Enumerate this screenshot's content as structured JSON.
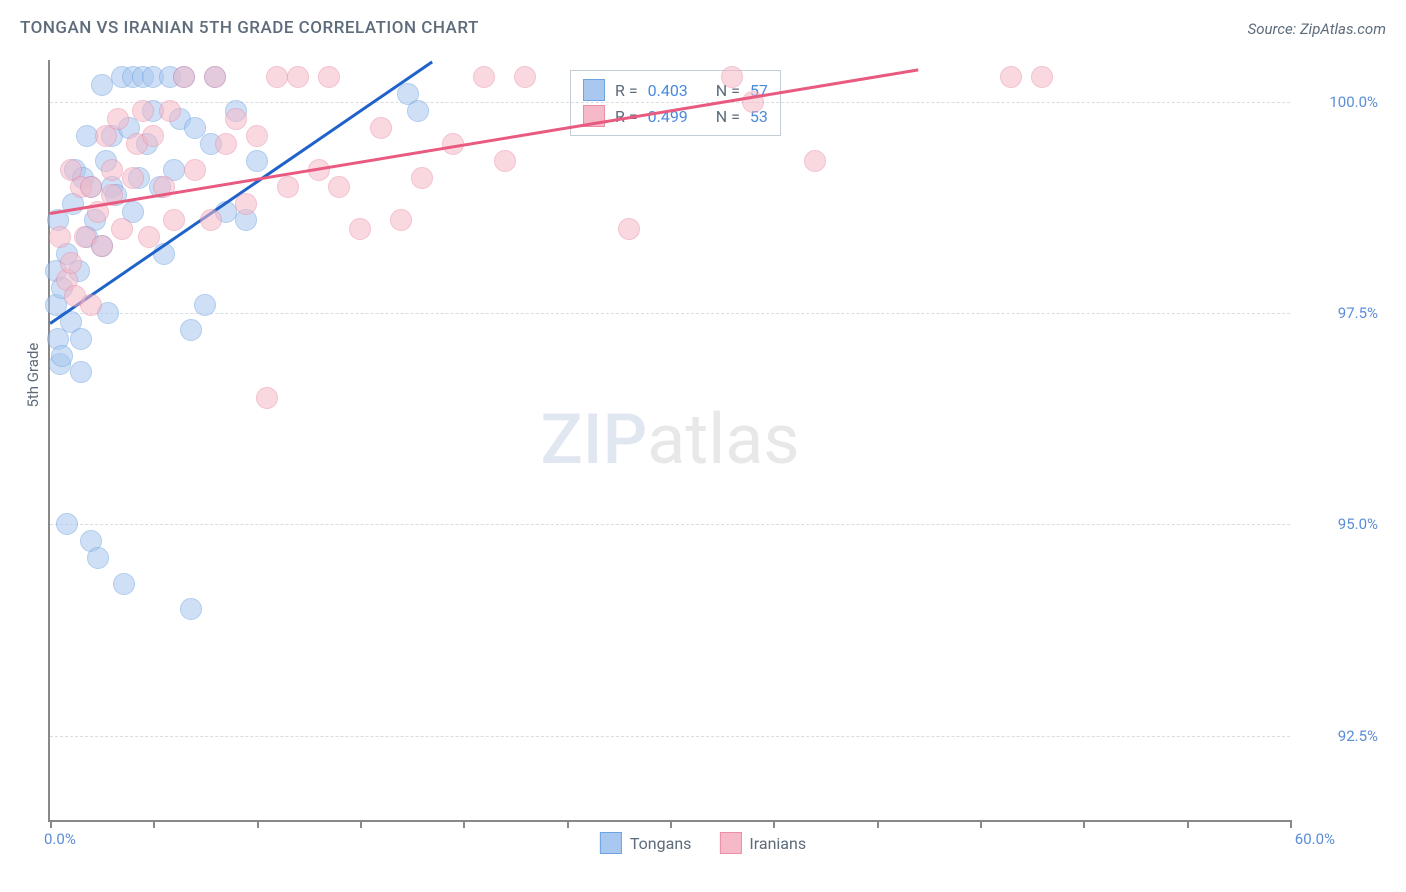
{
  "title": "TONGAN VS IRANIAN 5TH GRADE CORRELATION CHART",
  "source": "Source: ZipAtlas.com",
  "y_axis_label": "5th Grade",
  "watermark": {
    "part1": "ZIP",
    "part2": "atlas"
  },
  "chart": {
    "type": "scatter",
    "xlim": [
      0,
      60
    ],
    "ylim": [
      91.5,
      100.5
    ],
    "x_label_min": "0.0%",
    "x_label_max": "60.0%",
    "ytick_values": [
      92.5,
      95.0,
      97.5,
      100.0
    ],
    "ytick_labels": [
      "92.5%",
      "95.0%",
      "97.5%",
      "100.0%"
    ],
    "xtick_values": [
      0,
      5,
      10,
      15,
      20,
      25,
      30,
      35,
      40,
      45,
      50,
      55,
      60
    ],
    "background_color": "#ffffff",
    "grid_color": "#d8dde2",
    "marker_radius": 10,
    "marker_opacity": 0.55,
    "series": [
      {
        "name": "Tongans",
        "label": "Tongans",
        "fill": "#a8c8f0",
        "stroke": "#6fa3e0",
        "trend_stroke": "#1f62c9",
        "R": "0.403",
        "N": "57",
        "trend": {
          "x1": 0,
          "y1": 97.4,
          "x2": 18.5,
          "y2": 100.5
        },
        "points": [
          [
            0.3,
            97.6
          ],
          [
            0.3,
            98.0
          ],
          [
            0.4,
            97.2
          ],
          [
            0.4,
            98.6
          ],
          [
            0.5,
            96.9
          ],
          [
            0.6,
            97.0
          ],
          [
            0.6,
            97.8
          ],
          [
            0.8,
            98.2
          ],
          [
            0.8,
            95.0
          ],
          [
            1.0,
            97.4
          ],
          [
            1.1,
            98.8
          ],
          [
            1.2,
            99.2
          ],
          [
            1.4,
            98.0
          ],
          [
            1.5,
            96.8
          ],
          [
            1.5,
            97.2
          ],
          [
            1.6,
            99.1
          ],
          [
            1.8,
            99.6
          ],
          [
            1.8,
            98.4
          ],
          [
            2.0,
            99.0
          ],
          [
            2.0,
            94.8
          ],
          [
            2.2,
            98.6
          ],
          [
            2.3,
            94.6
          ],
          [
            2.5,
            100.2
          ],
          [
            2.5,
            98.3
          ],
          [
            2.7,
            99.3
          ],
          [
            2.8,
            97.5
          ],
          [
            3.0,
            99.0
          ],
          [
            3.0,
            99.6
          ],
          [
            3.2,
            98.9
          ],
          [
            3.5,
            100.3
          ],
          [
            3.6,
            94.3
          ],
          [
            3.8,
            99.7
          ],
          [
            4.0,
            100.3
          ],
          [
            4.0,
            98.7
          ],
          [
            4.3,
            99.1
          ],
          [
            4.5,
            100.3
          ],
          [
            4.7,
            99.5
          ],
          [
            5.0,
            99.9
          ],
          [
            5.0,
            100.3
          ],
          [
            5.3,
            99.0
          ],
          [
            5.5,
            98.2
          ],
          [
            5.8,
            100.3
          ],
          [
            6.0,
            99.2
          ],
          [
            6.3,
            99.8
          ],
          [
            6.5,
            100.3
          ],
          [
            6.8,
            97.3
          ],
          [
            7.0,
            99.7
          ],
          [
            7.5,
            97.6
          ],
          [
            7.8,
            99.5
          ],
          [
            6.8,
            94.0
          ],
          [
            8.0,
            100.3
          ],
          [
            8.5,
            98.7
          ],
          [
            9.0,
            99.9
          ],
          [
            9.5,
            98.6
          ],
          [
            10.0,
            99.3
          ],
          [
            17.3,
            100.1
          ],
          [
            17.8,
            99.9
          ]
        ]
      },
      {
        "name": "Iranians",
        "label": "Iranians",
        "fill": "#f5b9c8",
        "stroke": "#ea8fa8",
        "trend_stroke": "#e85a7f",
        "R": "0.499",
        "N": "53",
        "trend": {
          "x1": 0,
          "y1": 98.7,
          "x2": 42,
          "y2": 100.4
        },
        "points": [
          [
            0.5,
            98.4
          ],
          [
            0.8,
            97.9
          ],
          [
            1.0,
            98.1
          ],
          [
            1.0,
            99.2
          ],
          [
            1.2,
            97.7
          ],
          [
            1.5,
            99.0
          ],
          [
            1.7,
            98.4
          ],
          [
            2.0,
            97.6
          ],
          [
            2.0,
            99.0
          ],
          [
            2.3,
            98.7
          ],
          [
            2.5,
            98.3
          ],
          [
            2.7,
            99.6
          ],
          [
            3.0,
            99.2
          ],
          [
            3.0,
            98.9
          ],
          [
            3.3,
            99.8
          ],
          [
            3.5,
            98.5
          ],
          [
            4.0,
            99.1
          ],
          [
            4.2,
            99.5
          ],
          [
            4.5,
            99.9
          ],
          [
            4.8,
            98.4
          ],
          [
            5.0,
            99.6
          ],
          [
            5.5,
            99.0
          ],
          [
            5.8,
            99.9
          ],
          [
            6.0,
            98.6
          ],
          [
            6.5,
            100.3
          ],
          [
            7.0,
            99.2
          ],
          [
            7.8,
            98.6
          ],
          [
            8.0,
            100.3
          ],
          [
            8.5,
            99.5
          ],
          [
            9.0,
            99.8
          ],
          [
            9.5,
            98.8
          ],
          [
            10.0,
            99.6
          ],
          [
            10.5,
            96.5
          ],
          [
            11.0,
            100.3
          ],
          [
            11.5,
            99.0
          ],
          [
            12.0,
            100.3
          ],
          [
            13.0,
            99.2
          ],
          [
            13.5,
            100.3
          ],
          [
            14.0,
            99.0
          ],
          [
            15.0,
            98.5
          ],
          [
            16.0,
            99.7
          ],
          [
            17.0,
            98.6
          ],
          [
            18.0,
            99.1
          ],
          [
            19.5,
            99.5
          ],
          [
            21.0,
            100.3
          ],
          [
            22.0,
            99.3
          ],
          [
            23.0,
            100.3
          ],
          [
            28.0,
            98.5
          ],
          [
            33.0,
            100.3
          ],
          [
            34.0,
            100.0
          ],
          [
            37.0,
            99.3
          ],
          [
            46.5,
            100.3
          ],
          [
            48.0,
            100.3
          ]
        ]
      }
    ]
  },
  "legend_stats": {
    "R_label": "R =",
    "N_label": "N ="
  },
  "bottom_legend": {
    "items": [
      "Tongans",
      "Iranians"
    ]
  }
}
